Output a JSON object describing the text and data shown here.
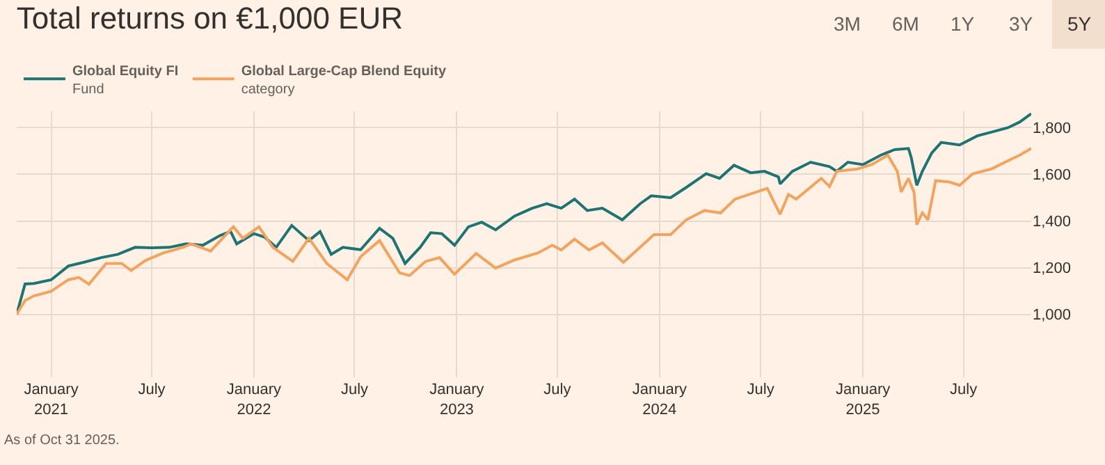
{
  "chart_data": {
    "type": "line",
    "title": "Total returns on €1,000 EUR",
    "x": [
      "2020-10-31",
      "2020-11-15",
      "2020-12-01",
      "2021-01-01",
      "2021-02-01",
      "2021-03-01",
      "2021-04-01",
      "2021-05-01",
      "2021-06-01",
      "2021-07-01",
      "2021-08-01",
      "2021-09-01",
      "2021-10-01",
      "2021-11-01",
      "2021-11-20",
      "2021-12-01",
      "2022-01-01",
      "2022-01-20",
      "2022-02-10",
      "2022-03-10",
      "2022-04-10",
      "2022-04-30",
      "2022-05-20",
      "2022-06-10",
      "2022-07-12",
      "2022-08-15",
      "2022-09-08",
      "2022-09-30",
      "2022-10-27",
      "2022-11-15",
      "2022-12-05",
      "2022-12-28",
      "2023-01-22",
      "2023-02-15",
      "2023-03-12",
      "2023-04-15",
      "2023-05-17",
      "2023-06-12",
      "2023-07-08",
      "2023-08-01",
      "2023-08-24",
      "2023-09-20",
      "2023-10-26",
      "2023-11-27",
      "2023-12-17",
      "2024-01-21",
      "2024-02-18",
      "2024-03-25",
      "2024-04-18",
      "2024-05-14",
      "2024-06-13",
      "2024-07-08",
      "2024-08-02",
      "2024-08-05",
      "2024-08-27",
      "2024-09-29",
      "2024-11-02",
      "2024-11-15",
      "2024-12-05",
      "2025-01-01",
      "2025-02-02",
      "2025-02-27",
      "2025-03-24",
      "2025-03-29",
      "2025-04-08",
      "2025-04-18",
      "2025-05-05",
      "2025-05-22",
      "2025-06-24",
      "2025-07-26",
      "2025-08-20",
      "2025-09-19",
      "2025-10-10",
      "2025-10-31"
    ],
    "series": [
      {
        "name": "Global Equity FI\nFund",
        "color": "#1e7473",
        "values": [
          1000,
          1130,
          1132,
          1148,
          1207,
          1223,
          1243,
          1257,
          1287,
          1285,
          1287,
          1302,
          1296,
          1338,
          1355,
          1302,
          1346,
          1331,
          1287,
          1381,
          1316,
          1355,
          1257,
          1287,
          1277,
          1369,
          1326,
          1218,
          1287,
          1350,
          1346,
          1296,
          1375,
          1395,
          1362,
          1421,
          1455,
          1474,
          1455,
          1494,
          1445,
          1455,
          1405,
          1474,
          1508,
          1500,
          1544,
          1603,
          1583,
          1639,
          1607,
          1613,
          1589,
          1559,
          1613,
          1652,
          1633,
          1613,
          1652,
          1642,
          1682,
          1706,
          1711,
          1672,
          1553,
          1613,
          1692,
          1737,
          1726,
          1765,
          1781,
          1800,
          1824,
          1860
        ]
      },
      {
        "name": "Global Large-Cap Blend Equity\ncategory",
        "color": "#f2a35e",
        "x": [
          "2020-10-31",
          "2020-11-15",
          "2020-12-01",
          "2021-01-01",
          "2021-02-01",
          "2021-02-20",
          "2021-03-10",
          "2021-04-10",
          "2021-05-08",
          "2021-05-25",
          "2021-06-20",
          "2021-07-22",
          "2021-08-26",
          "2021-09-10",
          "2021-10-15",
          "2021-11-25",
          "2021-12-12",
          "2022-01-10",
          "2022-02-04",
          "2022-03-12",
          "2022-04-10",
          "2022-05-12",
          "2022-06-18",
          "2022-07-12",
          "2022-08-15",
          "2022-09-20",
          "2022-10-08",
          "2022-11-06",
          "2022-12-01",
          "2022-12-28",
          "2023-02-05",
          "2023-03-12",
          "2023-04-15",
          "2023-05-27",
          "2023-06-22",
          "2023-07-08",
          "2023-08-01",
          "2023-08-27",
          "2023-09-20",
          "2023-10-28",
          "2023-11-27",
          "2023-12-22",
          "2024-01-21",
          "2024-02-18",
          "2024-03-22",
          "2024-04-20",
          "2024-05-16",
          "2024-06-10",
          "2024-07-13",
          "2024-08-05",
          "2024-08-20",
          "2024-09-03",
          "2024-10-18",
          "2024-11-02",
          "2024-11-15",
          "2024-12-22",
          "2025-01-17",
          "2025-02-15",
          "2025-03-04",
          "2025-03-11",
          "2025-03-24",
          "2025-04-03",
          "2025-04-08",
          "2025-04-18",
          "2025-04-28",
          "2025-05-12",
          "2025-06-06",
          "2025-06-24",
          "2025-07-18",
          "2025-08-20",
          "2025-09-22",
          "2025-10-10",
          "2025-10-31"
        ],
        "values": [
          1000,
          1059,
          1079,
          1099,
          1148,
          1158,
          1129,
          1218,
          1218,
          1188,
          1231,
          1263,
          1287,
          1302,
          1271,
          1375,
          1326,
          1375,
          1287,
          1227,
          1326,
          1218,
          1148,
          1247,
          1316,
          1178,
          1166,
          1227,
          1243,
          1172,
          1261,
          1198,
          1233,
          1263,
          1296,
          1276,
          1322,
          1276,
          1306,
          1223,
          1287,
          1342,
          1342,
          1405,
          1445,
          1435,
          1494,
          1514,
          1540,
          1429,
          1514,
          1494,
          1583,
          1548,
          1613,
          1623,
          1642,
          1682,
          1613,
          1524,
          1583,
          1524,
          1385,
          1435,
          1405,
          1573,
          1567,
          1553,
          1603,
          1623,
          1662,
          1682,
          1711
        ]
      }
    ],
    "xlim": [
      "2020-10-31",
      "2025-10-31"
    ],
    "xticks": [
      {
        "value": "2021-01-01",
        "label": "January\n2021"
      },
      {
        "value": "2021-07-01",
        "label": "July"
      },
      {
        "value": "2022-01-01",
        "label": "January\n2022"
      },
      {
        "value": "2022-07-01",
        "label": "July"
      },
      {
        "value": "2023-01-01",
        "label": "January\n2023"
      },
      {
        "value": "2023-07-01",
        "label": "July"
      },
      {
        "value": "2024-01-01",
        "label": "January\n2024"
      },
      {
        "value": "2024-07-01",
        "label": "July"
      },
      {
        "value": "2025-01-01",
        "label": "January\n2025"
      },
      {
        "value": "2025-07-01",
        "label": "July"
      }
    ],
    "ylim": [
      730,
      1870
    ],
    "yticks": [
      {
        "value": 1000,
        "label": "1,000"
      },
      {
        "value": 1200,
        "label": "1,200"
      },
      {
        "value": 1400,
        "label": "1,400"
      },
      {
        "value": 1600,
        "label": "1,600"
      },
      {
        "value": 1800,
        "label": "1,800"
      }
    ],
    "grid": true,
    "legend": "top left",
    "marker": "none",
    "line_style": "solid",
    "annotations": [
      "As of Oct 31 2025.",
      "3M",
      "6M",
      "1Y",
      "3Y",
      "5Y"
    ]
  }
}
